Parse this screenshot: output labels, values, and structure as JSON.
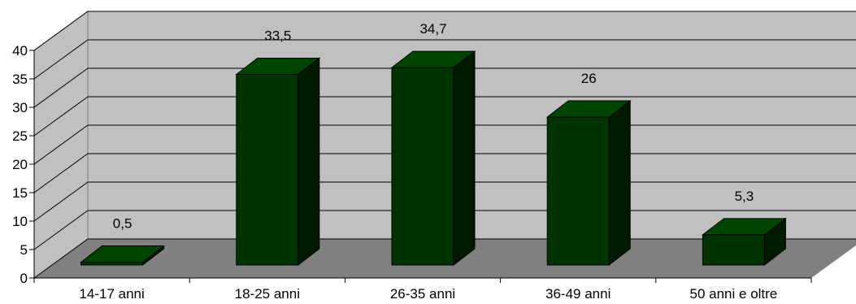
{
  "chart_data": {
    "type": "bar",
    "categories": [
      "14-17 anni",
      "18-25 anni",
      "26-35 anni",
      "36-49 anni",
      "50 anni e oltre"
    ],
    "values": [
      0.5,
      33.5,
      34.7,
      26,
      5.3
    ],
    "data_labels": [
      "0,5",
      "33,5",
      "34,7",
      "26",
      "5,3"
    ],
    "ylim": [
      0,
      40
    ],
    "yticks": [
      0,
      5,
      10,
      15,
      20,
      25,
      30,
      35,
      40
    ],
    "title": "",
    "xlabel": "",
    "ylabel": "",
    "grid": true,
    "legend": "none",
    "three_d": true,
    "colors": {
      "bar_front": "#003300",
      "bar_side": "#001a00",
      "bar_top": "#004400",
      "back_wall": "#c0c0c0",
      "side_wall": "#c0c0c0",
      "floor": "#808080",
      "gridline": "#000000"
    }
  }
}
